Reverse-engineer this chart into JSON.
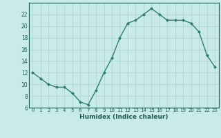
{
  "x": [
    0,
    1,
    2,
    3,
    4,
    5,
    6,
    7,
    8,
    9,
    10,
    11,
    12,
    13,
    14,
    15,
    16,
    17,
    18,
    19,
    20,
    21,
    22,
    23
  ],
  "y": [
    12,
    11,
    10,
    9.5,
    9.5,
    8.5,
    7,
    6.5,
    9,
    12,
    14.5,
    18,
    20.5,
    21,
    22,
    23,
    22,
    21,
    21,
    21,
    20.5,
    19,
    15,
    13
  ],
  "line_color": "#2e7d6e",
  "marker_color": "#2e7d6e",
  "bg_color": "#c8eae8",
  "grid_color": "#b0d4d0",
  "xlabel": "Humidex (Indice chaleur)",
  "xlabel_color": "#1a5c52",
  "tick_color": "#1a5c52",
  "ylim": [
    6,
    24
  ],
  "xlim": [
    -0.5,
    23.5
  ],
  "yticks": [
    6,
    8,
    10,
    12,
    14,
    16,
    18,
    20,
    22
  ],
  "xticks": [
    0,
    1,
    2,
    3,
    4,
    5,
    6,
    7,
    8,
    9,
    10,
    11,
    12,
    13,
    14,
    15,
    16,
    17,
    18,
    19,
    20,
    21,
    22,
    23
  ]
}
